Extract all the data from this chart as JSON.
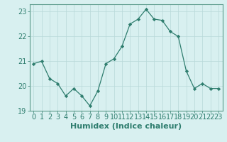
{
  "x": [
    0,
    1,
    2,
    3,
    4,
    5,
    6,
    7,
    8,
    9,
    10,
    11,
    12,
    13,
    14,
    15,
    16,
    17,
    18,
    19,
    20,
    21,
    22,
    23
  ],
  "y": [
    20.9,
    21.0,
    20.3,
    20.1,
    19.6,
    19.9,
    19.6,
    19.2,
    19.8,
    20.9,
    21.1,
    21.6,
    22.5,
    22.7,
    23.1,
    22.7,
    22.65,
    22.2,
    22.0,
    20.6,
    19.9,
    20.1,
    19.9,
    19.9
  ],
  "xlabel": "Humidex (Indice chaleur)",
  "xlim": [
    -0.5,
    23.5
  ],
  "ylim": [
    19,
    23.3
  ],
  "yticks": [
    19,
    20,
    21,
    22,
    23
  ],
  "xticks": [
    0,
    1,
    2,
    3,
    4,
    5,
    6,
    7,
    8,
    9,
    10,
    11,
    12,
    13,
    14,
    15,
    16,
    17,
    18,
    19,
    20,
    21,
    22,
    23
  ],
  "line_color": "#2e7d6e",
  "marker": "D",
  "marker_size": 2.2,
  "bg_color": "#d8f0f0",
  "grid_color": "#b8d8d8",
  "axis_color": "#5a9a8a",
  "tick_color": "#2e7d6e",
  "label_color": "#2e7d6e",
  "xlabel_fontsize": 8,
  "tick_fontsize": 7
}
